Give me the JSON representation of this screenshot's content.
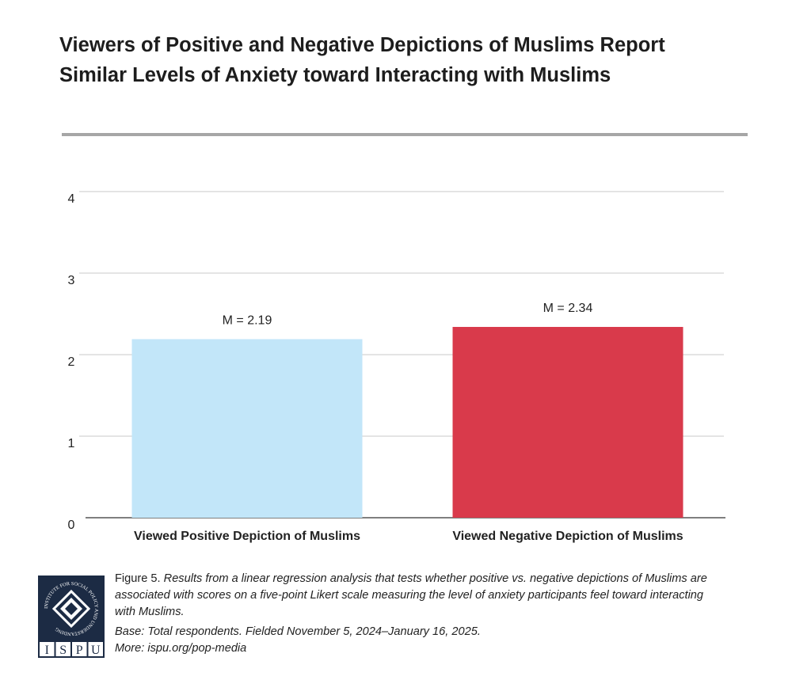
{
  "chart_data": {
    "type": "bar",
    "title": "Viewers of Positive and Negative Depictions of Muslims Report Similar Levels of Anxiety toward Interacting with Muslims",
    "categories": [
      "Viewed Positive Depiction of Muslims",
      "Viewed Negative Depiction of Muslims"
    ],
    "values": [
      2.19,
      2.34
    ],
    "value_labels": [
      "M = 2.19",
      "M = 2.34"
    ],
    "colors": [
      "#c2e6f9",
      "#d93a4b"
    ],
    "ylim": [
      0,
      4
    ],
    "yticks": [
      0,
      1,
      2,
      3,
      4
    ],
    "grid": true
  },
  "footer": {
    "figure_label": "Figure 5.",
    "caption": "Results from a linear regression analysis that tests whether positive vs. negative depictions of Muslims are associated with scores on a five-point Likert scale measuring the level of anxiety participants feel toward interacting with Muslims.",
    "base": "Base: Total respondents. Fielded November 5, 2024–January 16, 2025.",
    "more": "More: ispu.org/pop-media",
    "logo": {
      "ring_text": "INSTITUTE FOR SOCIAL POLICY AND UNDERSTANDING",
      "letters": [
        "I",
        "S",
        "P",
        "U"
      ]
    }
  }
}
